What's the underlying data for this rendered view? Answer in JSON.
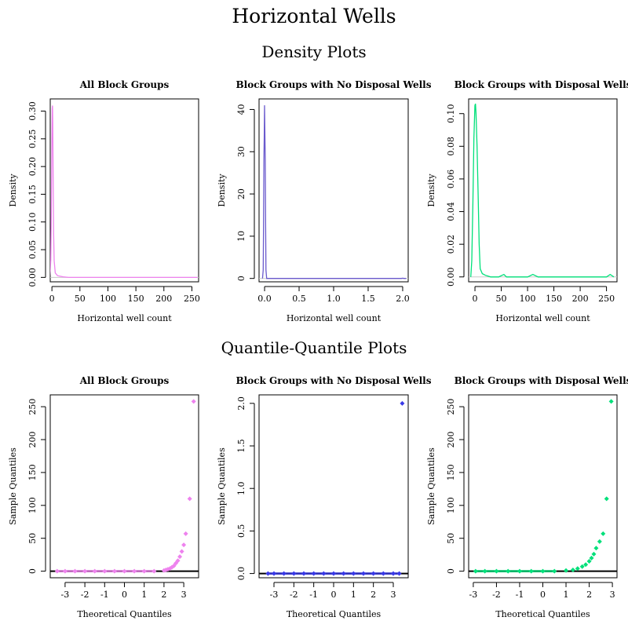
{
  "title": "Horizontal Wells",
  "sections": {
    "density": "Density Plots",
    "qq": "Quantile-Quantile Plots"
  },
  "chart_data": [
    {
      "type": "line",
      "title": "All Block Groups",
      "xlabel": "Horizontal well count",
      "ylabel": "Density",
      "xlim": [
        -3,
        262
      ],
      "ylim": [
        -0.008,
        0.322
      ],
      "xticks": [
        0,
        50,
        100,
        150,
        200,
        250
      ],
      "yticks": [
        0.0,
        0.05,
        0.1,
        0.15,
        0.2,
        0.25,
        0.3
      ],
      "ytick_labels": [
        "0.00",
        "0.05",
        "0.10",
        "0.15",
        "0.20",
        "0.25",
        "0.30"
      ],
      "color": "#ee82ee",
      "x": [
        -4,
        -2,
        -1,
        0,
        0.5,
        1,
        1.5,
        2,
        3,
        4,
        6,
        10,
        15,
        20,
        30,
        60,
        110,
        180,
        257,
        260
      ],
      "y": [
        0.0,
        0.03,
        0.12,
        0.25,
        0.305,
        0.31,
        0.28,
        0.2,
        0.08,
        0.03,
        0.008,
        0.003,
        0.002,
        0.001,
        0.0,
        0.0,
        0.0,
        0.0,
        0.0,
        0.0
      ]
    },
    {
      "type": "line",
      "title": "Block Groups with No Disposal Wells",
      "xlabel": "Horizontal well count",
      "ylabel": "Density",
      "xlim": [
        -0.08,
        2.08
      ],
      "ylim": [
        -0.8,
        42.5
      ],
      "xticks": [
        0,
        0.5,
        1,
        1.5,
        2
      ],
      "xtick_labels": [
        "0.0",
        "0.5",
        "1.0",
        "1.5",
        "2.0"
      ],
      "yticks": [
        0,
        10,
        20,
        30,
        40
      ],
      "color": "#6a5acd",
      "x": [
        -0.03,
        -0.02,
        -0.015,
        -0.01,
        -0.005,
        0,
        0.005,
        0.01,
        0.015,
        0.02,
        0.03,
        0.1,
        0.5,
        1,
        1.5,
        1.98,
        2.0,
        2.02,
        2.05
      ],
      "y": [
        0,
        2,
        12,
        28,
        33.5,
        41,
        33.5,
        28,
        12,
        2,
        0,
        0,
        0,
        0,
        0,
        0,
        0.05,
        0,
        0
      ]
    },
    {
      "type": "line",
      "title": "Block Groups with Disposal Wells",
      "xlabel": "Horizontal well count",
      "ylabel": "Density",
      "xlim": [
        -12,
        270
      ],
      "ylim": [
        -0.003,
        0.109
      ],
      "xticks": [
        0,
        50,
        100,
        150,
        200,
        250
      ],
      "yticks": [
        0.0,
        0.02,
        0.04,
        0.06,
        0.08,
        0.1
      ],
      "ytick_labels": [
        "0.00",
        "0.02",
        "0.04",
        "0.06",
        "0.08",
        "0.10"
      ],
      "color": "#00e07a",
      "x": [
        -8,
        -6,
        -4,
        -2,
        0,
        1,
        2,
        4,
        6,
        8,
        10,
        14,
        20,
        30,
        45,
        55,
        60,
        100,
        110,
        120,
        200,
        250,
        257,
        264
      ],
      "y": [
        0.0,
        0.01,
        0.045,
        0.085,
        0.105,
        0.106,
        0.1,
        0.08,
        0.05,
        0.02,
        0.005,
        0.002,
        0.001,
        0.0,
        0.0,
        0.0015,
        0.0,
        0.0,
        0.0015,
        0.0,
        0.0,
        0.0,
        0.0015,
        0.0
      ]
    },
    {
      "type": "scatter",
      "title": "All Block Groups",
      "xlabel": "Theoretical Quantiles",
      "ylabel": "Sample Quantiles",
      "xlim": [
        -3.75,
        3.75
      ],
      "ylim": [
        -10,
        268
      ],
      "xticks": [
        -3,
        -2,
        -1,
        0,
        1,
        2,
        3
      ],
      "yticks": [
        0,
        50,
        100,
        150,
        200,
        250
      ],
      "reference_line": 0,
      "color": "#ee82ee",
      "x": [
        -3.4,
        -3.0,
        -2.5,
        -2.0,
        -1.5,
        -1.0,
        -0.5,
        0,
        0.5,
        1.0,
        1.5,
        2.0,
        2.1,
        2.2,
        2.3,
        2.4,
        2.5,
        2.6,
        2.7,
        2.8,
        2.9,
        3.0,
        3.1,
        3.3,
        3.5
      ],
      "y": [
        0,
        0,
        0,
        0,
        0,
        0,
        0,
        0,
        0,
        0,
        0,
        1,
        2,
        3,
        4,
        6,
        8,
        12,
        16,
        22,
        30,
        40,
        57,
        110,
        258
      ]
    },
    {
      "type": "scatter",
      "title": "Block Groups with No Disposal Wells",
      "xlabel": "Theoretical Quantiles",
      "ylabel": "Sample Quantiles",
      "xlim": [
        -3.75,
        3.75
      ],
      "ylim": [
        -0.05,
        2.1
      ],
      "xticks": [
        -3,
        -2,
        -1,
        0,
        1,
        2,
        3
      ],
      "yticks": [
        0,
        0.5,
        1,
        1.5,
        2
      ],
      "ytick_labels": [
        "0.0",
        "0.5",
        "1.0",
        "1.5",
        "2.0"
      ],
      "reference_line": 0,
      "color": "#3a3ae8",
      "x": [
        -3.3,
        -3.0,
        -2.5,
        -2.0,
        -1.5,
        -1.0,
        -0.5,
        0,
        0.5,
        1.0,
        1.5,
        2.0,
        2.5,
        3.0,
        3.3,
        3.45
      ],
      "y": [
        0,
        0,
        0,
        0,
        0,
        0,
        0,
        0,
        0,
        0,
        0,
        0,
        0,
        0,
        0,
        2
      ]
    },
    {
      "type": "scatter",
      "title": "Block Groups with Disposal Wells",
      "xlabel": "Theoretical Quantiles",
      "ylabel": "Sample Quantiles",
      "xlim": [
        -3.2,
        3.2
      ],
      "ylim": [
        -10,
        268
      ],
      "xticks": [
        -3,
        -2,
        -1,
        0,
        1,
        2,
        3
      ],
      "yticks": [
        0,
        50,
        100,
        150,
        200,
        250
      ],
      "reference_line": 0,
      "color": "#00e07a",
      "x": [
        -2.9,
        -2.5,
        -2.0,
        -1.5,
        -1.0,
        -0.5,
        0,
        0.5,
        1.0,
        1.3,
        1.5,
        1.7,
        1.85,
        2.0,
        2.1,
        2.2,
        2.3,
        2.45,
        2.6,
        2.75,
        2.95
      ],
      "y": [
        0,
        0,
        0,
        0,
        0,
        0,
        0,
        0,
        1,
        2,
        4,
        7,
        10,
        15,
        20,
        26,
        35,
        45,
        57,
        110,
        258
      ]
    }
  ]
}
